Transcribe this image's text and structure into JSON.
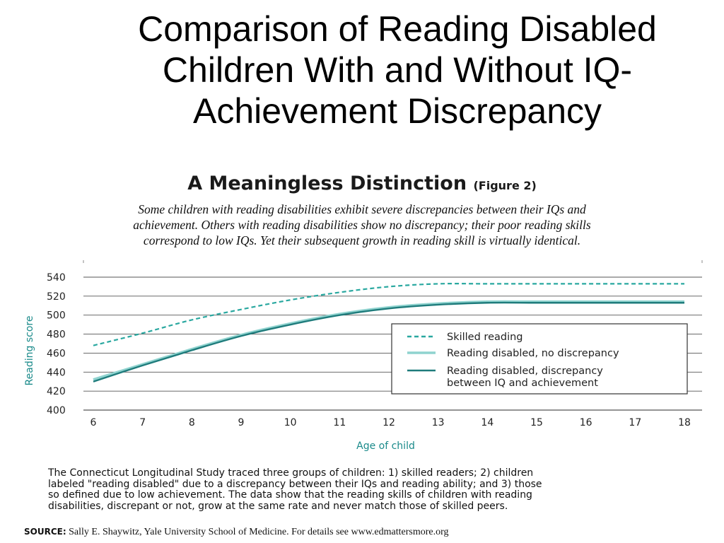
{
  "slide": {
    "title_lines": [
      "Comparison of Reading Disabled",
      "Children With and Without IQ-",
      "Achievement Discrepancy"
    ]
  },
  "figure": {
    "title": "A Meaningless Distinction",
    "figure_ref": "(Figure 2)",
    "subtitle_lines": [
      "Some children with reading disabilities exhibit severe discrepancies between their IQs and",
      "achievement. Others with reading disabilities show no discrepancy; their poor reading skills",
      "correspond to low IQs. Yet their subsequent growth in reading skill is virtually identical."
    ],
    "caption_lines": [
      "The Connecticut Longitudinal Study traced three groups of children: 1) skilled readers; 2) children",
      "labeled \"reading disabled\" due to a discrepancy between their IQs and reading ability; and 3) those",
      "so defined due to low achievement. The data show that the reading skills of children with reading",
      "disabilities, discrepant or not, grow at the same rate and never match those of skilled peers."
    ],
    "source_label": "SOURCE:",
    "source_text": "Sally E. Shaywitz, Yale University School of Medicine. For details see www.edmattersmore.org"
  },
  "chart_data": {
    "type": "line",
    "xlabel": "Age of child",
    "ylabel": "Reading score",
    "xlim": [
      6,
      18
    ],
    "ylim": [
      400,
      540
    ],
    "x_ticks": [
      6,
      7,
      8,
      9,
      10,
      11,
      12,
      13,
      14,
      15,
      16,
      17,
      18
    ],
    "y_ticks": [
      400,
      420,
      440,
      460,
      480,
      500,
      520,
      540
    ],
    "grid": "horizontal",
    "legend_position": "bottom-right",
    "x": [
      6,
      7,
      8,
      9,
      10,
      11,
      12,
      13,
      14,
      15,
      16,
      17,
      18
    ],
    "series": [
      {
        "name": "Skilled reading",
        "values": [
          468,
          481,
          495,
          506,
          516,
          524,
          530,
          533,
          533,
          533,
          533,
          533,
          533
        ],
        "color": "#2aa8a0",
        "style": "dashed"
      },
      {
        "name": "Reading disabled, no discrepancy",
        "values": [
          432,
          448,
          464,
          479,
          491,
          501,
          508,
          512,
          514,
          514,
          514,
          514,
          514
        ],
        "color": "#8fd3cf",
        "style": "solid"
      },
      {
        "name": "Reading disabled, discrepancy between IQ and achievement",
        "legend_lines": [
          "Reading disabled, discrepancy",
          "between IQ and achievement"
        ],
        "values": [
          430,
          447,
          463,
          478,
          490,
          500,
          507,
          511,
          513,
          513,
          513,
          513,
          513
        ],
        "color": "#1f7c7c",
        "style": "solid"
      }
    ]
  }
}
